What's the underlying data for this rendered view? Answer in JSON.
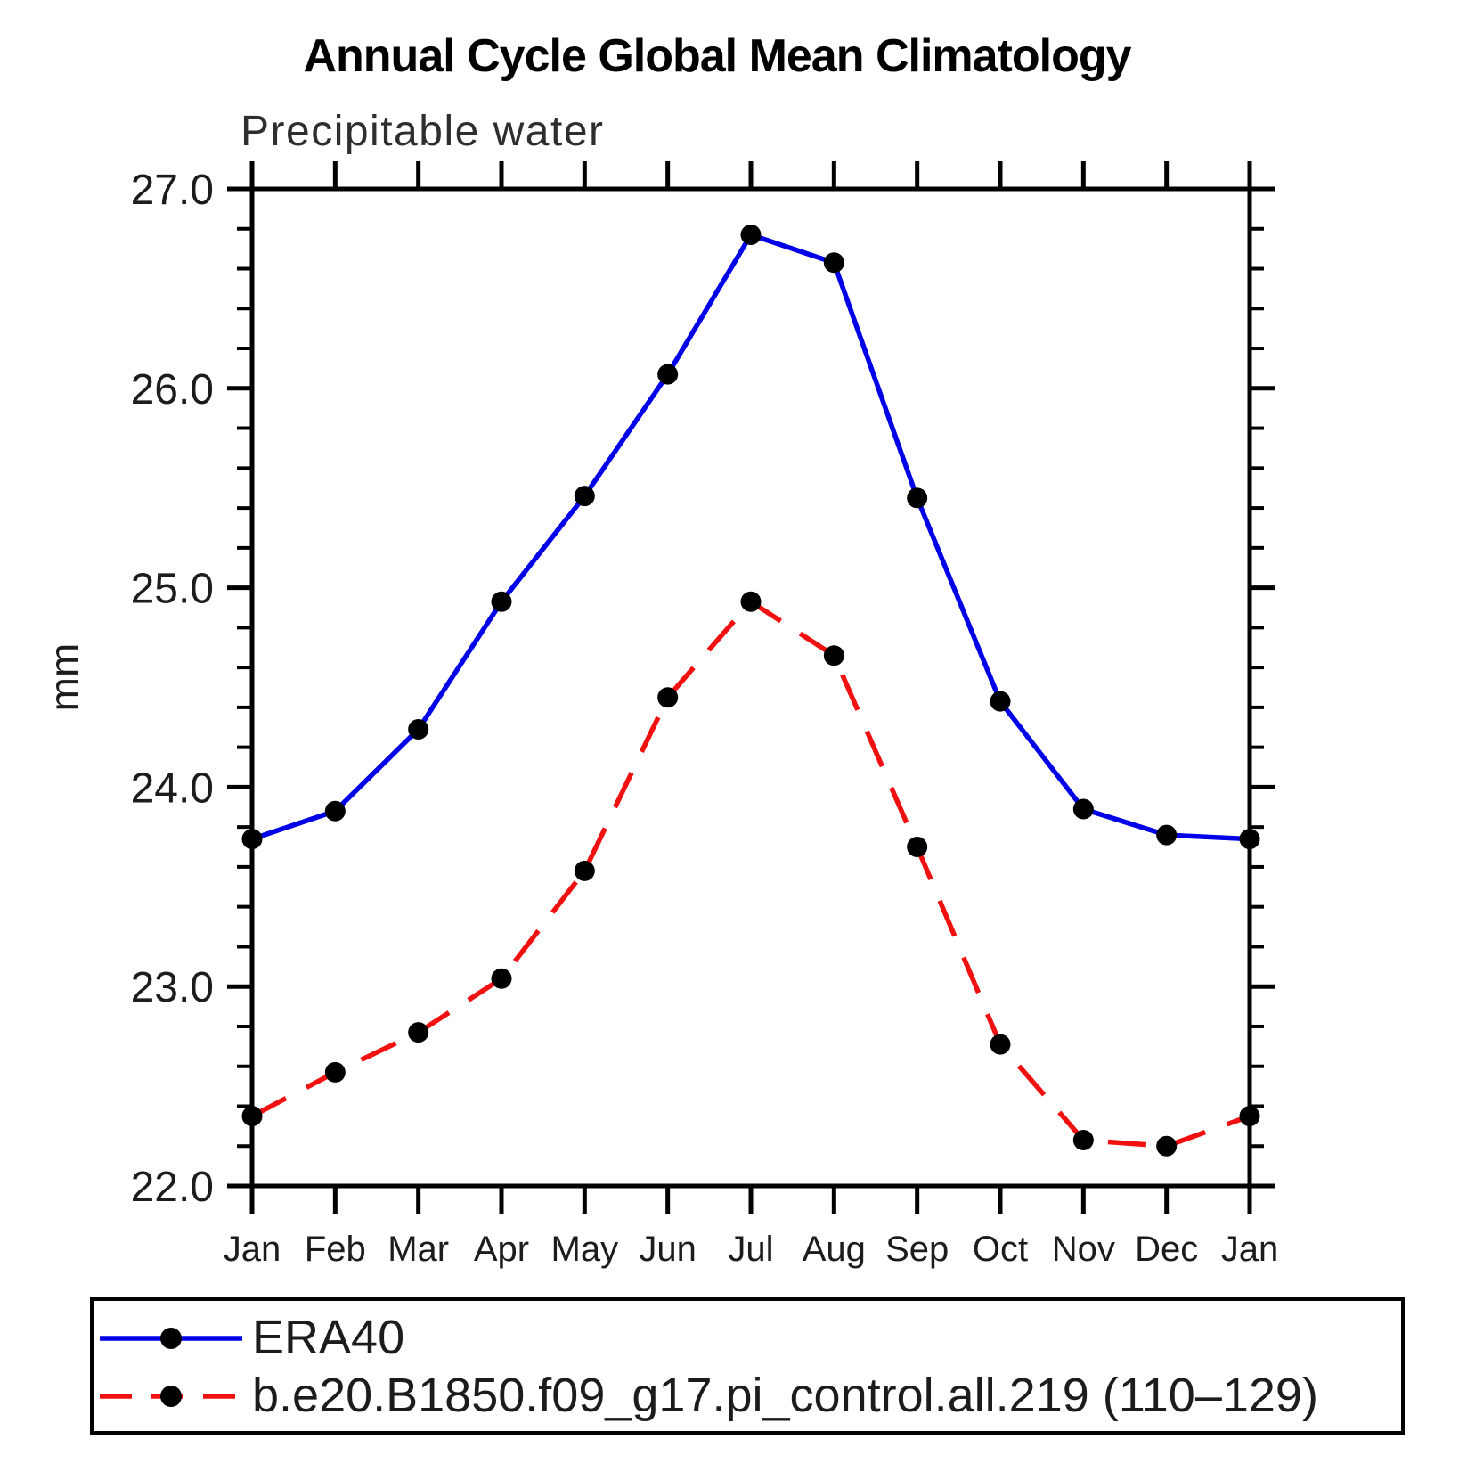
{
  "page": {
    "title": "Annual Cycle Global Mean Climatology",
    "subtitle": "Precipitable water"
  },
  "chart_data": {
    "type": "line",
    "title": "Annual Cycle Global Mean Climatology",
    "subtitle": "Precipitable water",
    "xlabel": "",
    "ylabel": "mm",
    "categories": [
      "Jan",
      "Feb",
      "Mar",
      "Apr",
      "May",
      "Jun",
      "Jul",
      "Aug",
      "Sep",
      "Oct",
      "Nov",
      "Dec",
      "Jan"
    ],
    "ylim": [
      22.0,
      27.0
    ],
    "ytick_labels": [
      "27.0",
      "26.0",
      "25.0",
      "24.0",
      "23.0",
      "22.0"
    ],
    "ytick_values": [
      27.0,
      26.0,
      25.0,
      24.0,
      23.0,
      22.0
    ],
    "ytick_minor_interval": 0.2,
    "grid": false,
    "legend_position": "bottom",
    "marker": {
      "shape": "circle",
      "color": "#000000"
    },
    "series": [
      {
        "name": "ERA40",
        "color": "#0000e8",
        "style": "solid",
        "values": [
          23.74,
          23.88,
          24.29,
          24.93,
          25.46,
          26.07,
          26.77,
          26.63,
          25.45,
          24.43,
          23.89,
          23.76,
          23.74
        ]
      },
      {
        "name": "b.e20.B1850.f09_g17.pi_control.all.219 (110–129)",
        "color": "#f01010",
        "style": "dashed",
        "values": [
          22.35,
          22.57,
          22.77,
          23.04,
          23.58,
          24.45,
          24.93,
          24.66,
          23.7,
          22.71,
          22.23,
          22.2,
          22.35
        ]
      }
    ]
  }
}
